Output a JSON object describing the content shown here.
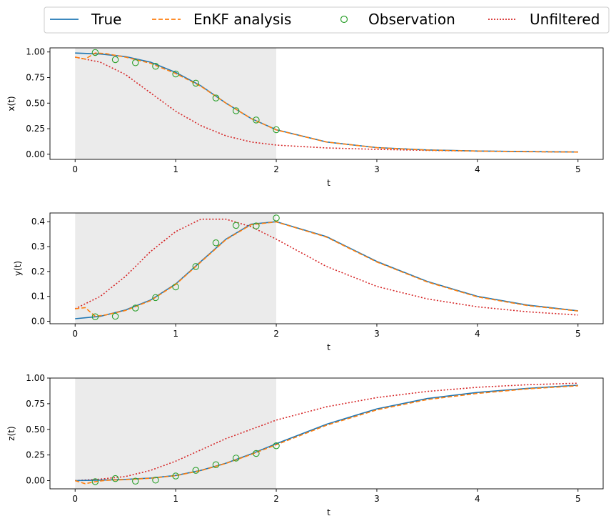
{
  "chart_data": {
    "type": "line",
    "legend": {
      "placement": "top",
      "entries": [
        {
          "label": "True",
          "color": "#1f77b4",
          "style": "solid"
        },
        {
          "label": "EnKF analysis",
          "color": "#ff7f0e",
          "style": "dashed"
        },
        {
          "label": "Observation",
          "color": "#2ca02c",
          "style": "marker"
        },
        {
          "label": "Unfiltered",
          "color": "#d62728",
          "style": "dotted"
        }
      ]
    },
    "shaded_region": {
      "x_start": 0,
      "x_end": 2,
      "color": "#ebebeb"
    },
    "panels": [
      {
        "ylabel": "x(t)",
        "xlabel": "t",
        "xlim": [
          -0.25,
          5.25
        ],
        "ylim": [
          -0.05,
          1.04
        ],
        "xticks": [
          0,
          1,
          2,
          3,
          4,
          5
        ],
        "xtick_labels": [
          "0",
          "1",
          "2",
          "3",
          "4",
          "5"
        ],
        "yticks": [
          0,
          0.25,
          0.5,
          0.75,
          1.0
        ],
        "ytick_labels": [
          "0.00",
          "0.25",
          "0.50",
          "0.75",
          "1.00"
        ],
        "series": {
          "true": {
            "x": [
              0,
              0.25,
              0.5,
              0.75,
              1,
              1.25,
              1.5,
              1.75,
              2,
              2.5,
              3,
              3.5,
              4,
              4.5,
              5
            ],
            "y": [
              0.99,
              0.98,
              0.955,
              0.9,
              0.8,
              0.67,
              0.5,
              0.35,
              0.24,
              0.12,
              0.065,
              0.042,
              0.032,
              0.026,
              0.022
            ]
          },
          "enkf": {
            "x": [
              0,
              0.1,
              0.2,
              0.3,
              0.5,
              0.75,
              1,
              1.25,
              1.5,
              1.75,
              2,
              2.5,
              3,
              3.5,
              4,
              4.5,
              5
            ],
            "y": [
              0.95,
              0.93,
              0.99,
              0.985,
              0.95,
              0.89,
              0.79,
              0.665,
              0.5,
              0.35,
              0.238,
              0.12,
              0.064,
              0.041,
              0.031,
              0.025,
              0.021
            ]
          },
          "observation": {
            "x": [
              0.2,
              0.4,
              0.6,
              0.8,
              1.0,
              1.2,
              1.4,
              1.6,
              1.8,
              2.0
            ],
            "y": [
              0.995,
              0.925,
              0.895,
              0.86,
              0.785,
              0.695,
              0.55,
              0.425,
              0.335,
              0.24
            ]
          },
          "unfiltered": {
            "x": [
              0,
              0.25,
              0.5,
              0.75,
              1,
              1.25,
              1.5,
              1.75,
              2,
              2.5,
              3,
              3.5,
              4,
              4.5,
              5
            ],
            "y": [
              0.95,
              0.9,
              0.78,
              0.6,
              0.42,
              0.28,
              0.18,
              0.12,
              0.09,
              0.062,
              0.048,
              0.038,
              0.031,
              0.026,
              0.022
            ]
          }
        }
      },
      {
        "ylabel": "y(t)",
        "xlabel": "t",
        "xlim": [
          -0.25,
          5.25
        ],
        "ylim": [
          -0.01,
          0.435
        ],
        "xticks": [
          0,
          1,
          2,
          3,
          4,
          5
        ],
        "xtick_labels": [
          "0",
          "1",
          "2",
          "3",
          "4",
          "5"
        ],
        "yticks": [
          0,
          0.1,
          0.2,
          0.3,
          0.4
        ],
        "ytick_labels": [
          "0.0",
          "0.1",
          "0.2",
          "0.3",
          "0.4"
        ],
        "series": {
          "true": {
            "x": [
              0,
              0.25,
              0.5,
              0.75,
              1,
              1.25,
              1.5,
              1.75,
              2,
              2.5,
              3,
              3.5,
              4,
              4.5,
              5
            ],
            "y": [
              0.01,
              0.02,
              0.045,
              0.085,
              0.15,
              0.24,
              0.33,
              0.39,
              0.4,
              0.34,
              0.24,
              0.16,
              0.1,
              0.065,
              0.042
            ]
          },
          "enkf": {
            "x": [
              0,
              0.1,
              0.2,
              0.3,
              0.5,
              0.75,
              1,
              1.25,
              1.5,
              1.75,
              2,
              2.5,
              3,
              3.5,
              4,
              4.5,
              5
            ],
            "y": [
              0.05,
              0.055,
              0.02,
              0.025,
              0.043,
              0.083,
              0.148,
              0.238,
              0.328,
              0.388,
              0.399,
              0.338,
              0.238,
              0.158,
              0.098,
              0.063,
              0.041
            ]
          },
          "observation": {
            "x": [
              0.2,
              0.4,
              0.6,
              0.8,
              1.0,
              1.2,
              1.4,
              1.6,
              1.8,
              2.0
            ],
            "y": [
              0.018,
              0.02,
              0.053,
              0.095,
              0.138,
              0.22,
              0.315,
              0.385,
              0.383,
              0.415
            ]
          },
          "unfiltered": {
            "x": [
              0,
              0.25,
              0.5,
              0.75,
              1,
              1.25,
              1.5,
              1.75,
              2,
              2.5,
              3,
              3.5,
              4,
              4.5,
              5
            ],
            "y": [
              0.05,
              0.1,
              0.18,
              0.28,
              0.36,
              0.41,
              0.41,
              0.38,
              0.33,
              0.22,
              0.14,
              0.09,
              0.058,
              0.038,
              0.025
            ]
          }
        }
      },
      {
        "ylabel": "z(t)",
        "xlabel": "t",
        "xlim": [
          -0.25,
          5.25
        ],
        "ylim": [
          -0.08,
          1.0
        ],
        "xticks": [
          0,
          1,
          2,
          3,
          4,
          5
        ],
        "xtick_labels": [
          "0",
          "1",
          "2",
          "3",
          "4",
          "5"
        ],
        "yticks": [
          0,
          0.25,
          0.5,
          0.75,
          1.0
        ],
        "ytick_labels": [
          "0.00",
          "0.25",
          "0.50",
          "0.75",
          "1.00"
        ],
        "series": {
          "true": {
            "x": [
              0,
              0.25,
              0.5,
              0.75,
              1,
              1.25,
              1.5,
              1.75,
              2,
              2.5,
              3,
              3.5,
              4,
              4.5,
              5
            ],
            "y": [
              0,
              0.005,
              0.012,
              0.025,
              0.05,
              0.1,
              0.17,
              0.26,
              0.36,
              0.55,
              0.7,
              0.8,
              0.86,
              0.9,
              0.93
            ]
          },
          "enkf": {
            "x": [
              0,
              0.1,
              0.2,
              0.3,
              0.5,
              0.75,
              1,
              1.25,
              1.5,
              1.75,
              2,
              2.5,
              3,
              3.5,
              4,
              4.5,
              5
            ],
            "y": [
              0,
              -0.03,
              -0.01,
              0.003,
              0.01,
              0.023,
              0.048,
              0.098,
              0.168,
              0.255,
              0.35,
              0.54,
              0.69,
              0.79,
              0.85,
              0.895,
              0.925
            ]
          },
          "observation": {
            "x": [
              0.2,
              0.4,
              0.6,
              0.8,
              1.0,
              1.2,
              1.4,
              1.6,
              1.8,
              2.0
            ],
            "y": [
              -0.01,
              0.02,
              -0.005,
              0.005,
              0.045,
              0.1,
              0.155,
              0.22,
              0.265,
              0.34
            ]
          },
          "unfiltered": {
            "x": [
              0,
              0.25,
              0.5,
              0.75,
              1,
              1.25,
              1.5,
              1.75,
              2,
              2.5,
              3,
              3.5,
              4,
              4.5,
              5
            ],
            "y": [
              0,
              0.015,
              0.04,
              0.1,
              0.19,
              0.3,
              0.41,
              0.5,
              0.59,
              0.72,
              0.81,
              0.87,
              0.91,
              0.935,
              0.95
            ]
          }
        }
      }
    ]
  }
}
